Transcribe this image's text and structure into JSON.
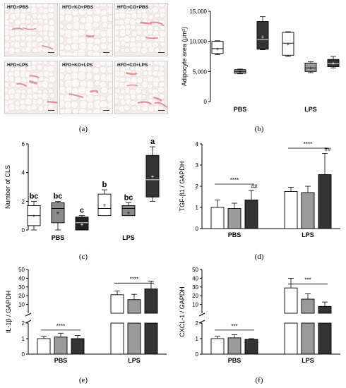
{
  "figure": {
    "captions": [
      "(a)",
      "(b)",
      "(c)",
      "(d)",
      "(e)",
      "(f)"
    ],
    "micrographs": {
      "labels": [
        "HFD+PBS",
        "HFD+KO+PBS",
        "HFD+CO+PBS",
        "HFD+LPS",
        "HFD+KO+LPS",
        "HFD+CO+LPS"
      ],
      "palette": {
        "tissue": "#f3ecea",
        "cell": "#fbf9f8",
        "stain": "#d9848a"
      }
    }
  },
  "chart_data": [
    {
      "id": "b",
      "type": "box",
      "title": "",
      "xlabel": "",
      "ylabel": "Adipocyte area (μm²)",
      "ylim": [
        0,
        15000
      ],
      "yticks": [
        "0",
        "5,000",
        "10,000",
        "15,000"
      ],
      "categories": [
        "PBS",
        "LPS"
      ],
      "boxes": [
        {
          "group": "PBS",
          "fill": "#ffffff",
          "min": 7800,
          "q1": 8000,
          "median": 8800,
          "q3": 10000,
          "max": 10100,
          "mean": 8800
        },
        {
          "group": "PBS",
          "fill": "#9a9a9a",
          "min": 4600,
          "q1": 4700,
          "median": 5000,
          "q3": 5300,
          "max": 5400,
          "mean": 5000
        },
        {
          "group": "PBS",
          "fill": "#333333",
          "min": 8600,
          "q1": 8700,
          "median": 10300,
          "q3": 13300,
          "max": 14100,
          "mean": 10800
        },
        {
          "group": "LPS",
          "fill": "#ffffff",
          "min": 7500,
          "q1": 7700,
          "median": 9700,
          "q3": 11500,
          "max": 11600,
          "mean": 9600
        },
        {
          "group": "LPS",
          "fill": "#9a9a9a",
          "min": 4800,
          "q1": 5000,
          "median": 5600,
          "q3": 6400,
          "max": 6600,
          "mean": 5600
        },
        {
          "group": "LPS",
          "fill": "#333333",
          "min": 5600,
          "q1": 5800,
          "median": 6300,
          "q3": 7000,
          "max": 7500,
          "mean": 6400
        }
      ]
    },
    {
      "id": "c",
      "type": "box",
      "title": "",
      "xlabel": "",
      "ylabel": "Number of CLS",
      "ylim": [
        0,
        6
      ],
      "yticks": [
        "0",
        "2",
        "4",
        "6"
      ],
      "categories": [
        "PBS",
        "LPS"
      ],
      "boxes": [
        {
          "group": "PBS",
          "fill": "#ffffff",
          "min": 0,
          "q1": 0.3,
          "median": 1.0,
          "q3": 1.7,
          "max": 2.0,
          "mean": 1.0,
          "letter": "bc"
        },
        {
          "group": "PBS",
          "fill": "#8a8a8a",
          "min": 0,
          "q1": 0.5,
          "median": 1.5,
          "q3": 1.9,
          "max": 2.0,
          "mean": 1.2,
          "letter": "bc"
        },
        {
          "group": "PBS",
          "fill": "#222222",
          "min": 0,
          "q1": 0.0,
          "median": 0.5,
          "q3": 0.9,
          "max": 1.0,
          "mean": 0.4,
          "letter": "c"
        },
        {
          "group": "LPS",
          "fill": "#ffffff",
          "min": 1.0,
          "q1": 1.0,
          "median": 1.5,
          "q3": 2.5,
          "max": 2.8,
          "mean": 1.75,
          "letter": "b"
        },
        {
          "group": "LPS",
          "fill": "#8a8a8a",
          "min": 1.0,
          "q1": 1.0,
          "median": 1.5,
          "q3": 1.7,
          "max": 1.9,
          "mean": 1.2,
          "letter": "bc"
        },
        {
          "group": "LPS",
          "fill": "#333333",
          "min": 2.0,
          "q1": 2.3,
          "median": 3.5,
          "q3": 5.2,
          "max": 5.8,
          "mean": 3.75,
          "letter": "a"
        }
      ]
    },
    {
      "id": "d",
      "type": "bar",
      "title": "",
      "xlabel": "",
      "ylabel": "TGF-β1 / GAPDH",
      "ylim": [
        0,
        4
      ],
      "yticks": [
        "0",
        "1",
        "2",
        "3",
        "4"
      ],
      "categories": [
        "PBS",
        "LPS"
      ],
      "series_fills": [
        "#ffffff",
        "#9a9a9a",
        "#333333"
      ],
      "values": [
        [
          1.0,
          0.95,
          1.35
        ],
        [
          1.75,
          1.7,
          2.55
        ]
      ],
      "errors": [
        [
          0.35,
          0.25,
          0.45
        ],
        [
          0.2,
          0.3,
          1.0
        ]
      ],
      "marks": [
        [
          null,
          null,
          "##"
        ],
        [
          null,
          null,
          "##"
        ]
      ],
      "significance": [
        {
          "group": "PBS",
          "label": "****",
          "y": 2.1
        },
        {
          "group": "LPS",
          "label": "****",
          "y": 3.8
        }
      ]
    },
    {
      "id": "e",
      "type": "bar",
      "title": "",
      "xlabel": "",
      "ylabel": "IL-1β / GAPDH",
      "axis_break": {
        "lower": [
          0,
          2
        ],
        "upper": [
          5,
          50
        ]
      },
      "yticks_lower": [
        "0",
        "1",
        "2"
      ],
      "yticks_upper": [
        "10",
        "20",
        "30",
        "40",
        "50"
      ],
      "categories": [
        "PBS",
        "LPS"
      ],
      "series_fills": [
        "#ffffff",
        "#9a9a9a",
        "#333333"
      ],
      "values": [
        [
          1.0,
          1.1,
          1.0
        ],
        [
          24,
          19,
          30
        ]
      ],
      "errors": [
        [
          0.15,
          0.25,
          0.2
        ],
        [
          4,
          5.5,
          8
        ]
      ],
      "significance": [
        {
          "group": "PBS",
          "label": "****",
          "y": 1.55
        },
        {
          "group": "LPS",
          "label": "****",
          "y": 36
        }
      ]
    },
    {
      "id": "f",
      "type": "bar",
      "title": "",
      "xlabel": "",
      "ylabel": "CXCL-1 / GAPDH",
      "axis_break": {
        "lower": [
          0,
          2
        ],
        "upper": [
          5,
          50
        ]
      },
      "yticks_lower": [
        "0",
        "1",
        "2"
      ],
      "yticks_upper": [
        "10",
        "20",
        "30",
        "40",
        "50"
      ],
      "categories": [
        "PBS",
        "LPS"
      ],
      "series_fills": [
        "#ffffff",
        "#9a9a9a",
        "#333333"
      ],
      "values": [
        [
          1.0,
          1.05,
          0.95
        ],
        [
          31,
          19.5,
          12
        ]
      ],
      "errors": [
        [
          0.15,
          0.2,
          0.05
        ],
        [
          10,
          5.5,
          4.5
        ]
      ],
      "significance": [
        {
          "group": "PBS",
          "label": "***",
          "y": 1.55
        },
        {
          "group": "LPS",
          "label": "***",
          "y": 35
        }
      ]
    }
  ]
}
